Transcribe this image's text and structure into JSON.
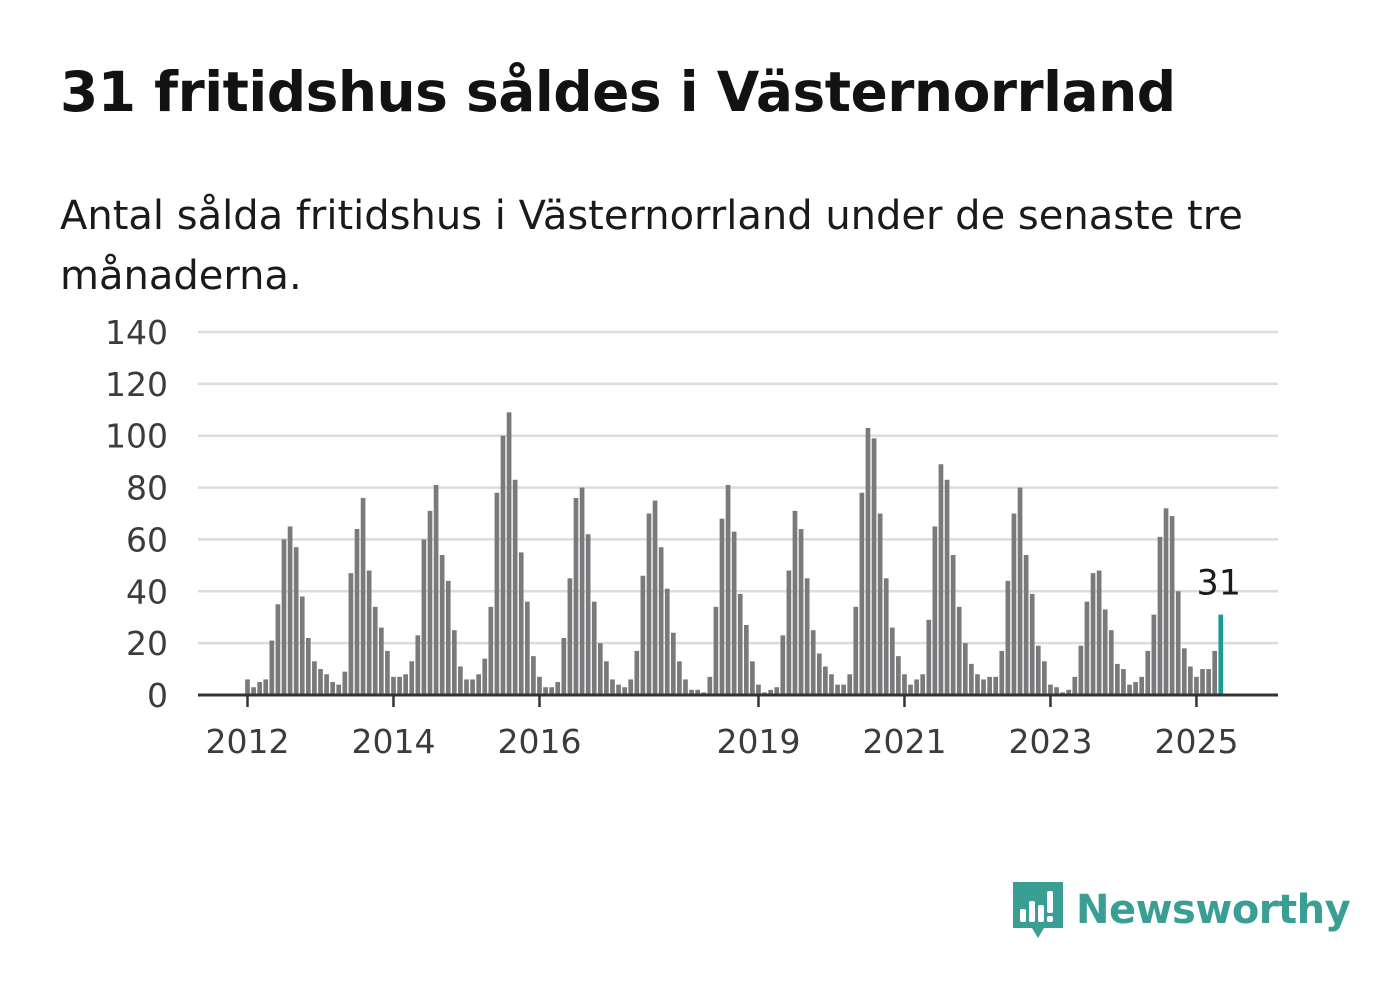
{
  "header": {
    "title": "31 fritidshus såldes i Västernorrland",
    "subtitle": "Antal sålda fritidshus i Västernorrland under de senaste tre månaderna."
  },
  "brand": {
    "name": "Newsworthy",
    "icon": "bar-chart-speech-bubble-icon",
    "color": "#3a9e95"
  },
  "chart_data": {
    "type": "bar",
    "xlabel": "",
    "ylabel": "",
    "ylim": [
      0,
      140
    ],
    "yticks": [
      0,
      20,
      40,
      60,
      80,
      100,
      120,
      140
    ],
    "x_tick_labels": [
      "2012",
      "2014",
      "2016",
      "2019",
      "2021",
      "2023",
      "2025"
    ],
    "grid": true,
    "bar_color": "#7a7a7c",
    "highlight_color": "#1a9a92",
    "highlight_label": "31",
    "start": "2012-01",
    "values": [
      6,
      3,
      5,
      6,
      21,
      35,
      60,
      65,
      57,
      38,
      22,
      13,
      10,
      8,
      5,
      4,
      9,
      47,
      64,
      76,
      48,
      34,
      26,
      17,
      7,
      7,
      8,
      13,
      23,
      60,
      71,
      81,
      54,
      44,
      25,
      11,
      6,
      6,
      8,
      14,
      34,
      78,
      100,
      109,
      83,
      55,
      36,
      15,
      7,
      3,
      3,
      5,
      22,
      45,
      76,
      80,
      62,
      36,
      20,
      13,
      6,
      4,
      3,
      6,
      17,
      46,
      70,
      75,
      57,
      41,
      24,
      13,
      6,
      2,
      2,
      1,
      7,
      34,
      68,
      81,
      63,
      39,
      27,
      13,
      4,
      1,
      2,
      3,
      23,
      48,
      71,
      64,
      45,
      25,
      16,
      11,
      8,
      4,
      4,
      8,
      34,
      78,
      103,
      99,
      70,
      45,
      26,
      15,
      8,
      4,
      6,
      8,
      29,
      65,
      89,
      83,
      54,
      34,
      20,
      12,
      8,
      6,
      7,
      7,
      17,
      44,
      70,
      80,
      54,
      39,
      19,
      13,
      4,
      3,
      1,
      2,
      7,
      19,
      36,
      47,
      48,
      33,
      25,
      12,
      10,
      4,
      5,
      7,
      17,
      31,
      61,
      72,
      69,
      40,
      18,
      11,
      7,
      10,
      10,
      17,
      31
    ]
  }
}
